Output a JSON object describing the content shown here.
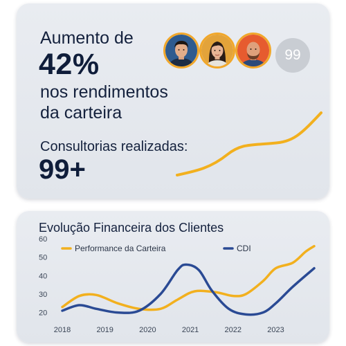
{
  "stats": {
    "headline_prefix": "Aumento de",
    "headline_value": "42%",
    "headline_line2": "nos rendimentos",
    "headline_line3": "da carteira",
    "consult_label": "Consultorias realizadas:",
    "consult_value": "99+",
    "avatar_count": "99",
    "avatars": [
      {
        "name": "avatar-man-1-icon",
        "bg": "#2e5b8f"
      },
      {
        "name": "avatar-woman-icon",
        "bg": "#e3a33a"
      },
      {
        "name": "avatar-man-2-icon",
        "bg": "#e65b2f"
      }
    ],
    "accent_color": "#f2b01e"
  },
  "chart_data": {
    "type": "line",
    "title": "Evolução Financeira dos Clientes",
    "x": [
      2018,
      2019,
      2020,
      2021,
      2022,
      2023
    ],
    "xlim": [
      2018,
      2023.9
    ],
    "ylim": [
      15,
      60
    ],
    "yticks": [
      20,
      30,
      40,
      50,
      60
    ],
    "legend_placement": "top",
    "grid": false,
    "series": [
      {
        "name": "Performance da Carteira",
        "color": "#f2b01e",
        "points": [
          [
            2018,
            23
          ],
          [
            2018.4,
            29
          ],
          [
            2018.8,
            29.5
          ],
          [
            2019.3,
            25
          ],
          [
            2019.8,
            22
          ],
          [
            2020.3,
            22
          ],
          [
            2020.7,
            27
          ],
          [
            2021.1,
            31.5
          ],
          [
            2021.6,
            31
          ],
          [
            2022.0,
            29
          ],
          [
            2022.3,
            30
          ],
          [
            2022.7,
            37
          ],
          [
            2023.0,
            44
          ],
          [
            2023.4,
            47
          ],
          [
            2023.7,
            53
          ],
          [
            2023.9,
            56
          ]
        ]
      },
      {
        "name": "CDI",
        "color": "#2a4a94",
        "points": [
          [
            2018,
            21
          ],
          [
            2018.4,
            24
          ],
          [
            2018.8,
            22
          ],
          [
            2019.3,
            20
          ],
          [
            2019.8,
            21
          ],
          [
            2020.3,
            30
          ],
          [
            2020.7,
            43
          ],
          [
            2020.9,
            46
          ],
          [
            2021.2,
            43
          ],
          [
            2021.5,
            32
          ],
          [
            2021.9,
            22
          ],
          [
            2022.3,
            19
          ],
          [
            2022.7,
            20
          ],
          [
            2023.0,
            25
          ],
          [
            2023.4,
            34
          ],
          [
            2023.9,
            44
          ]
        ]
      }
    ]
  }
}
